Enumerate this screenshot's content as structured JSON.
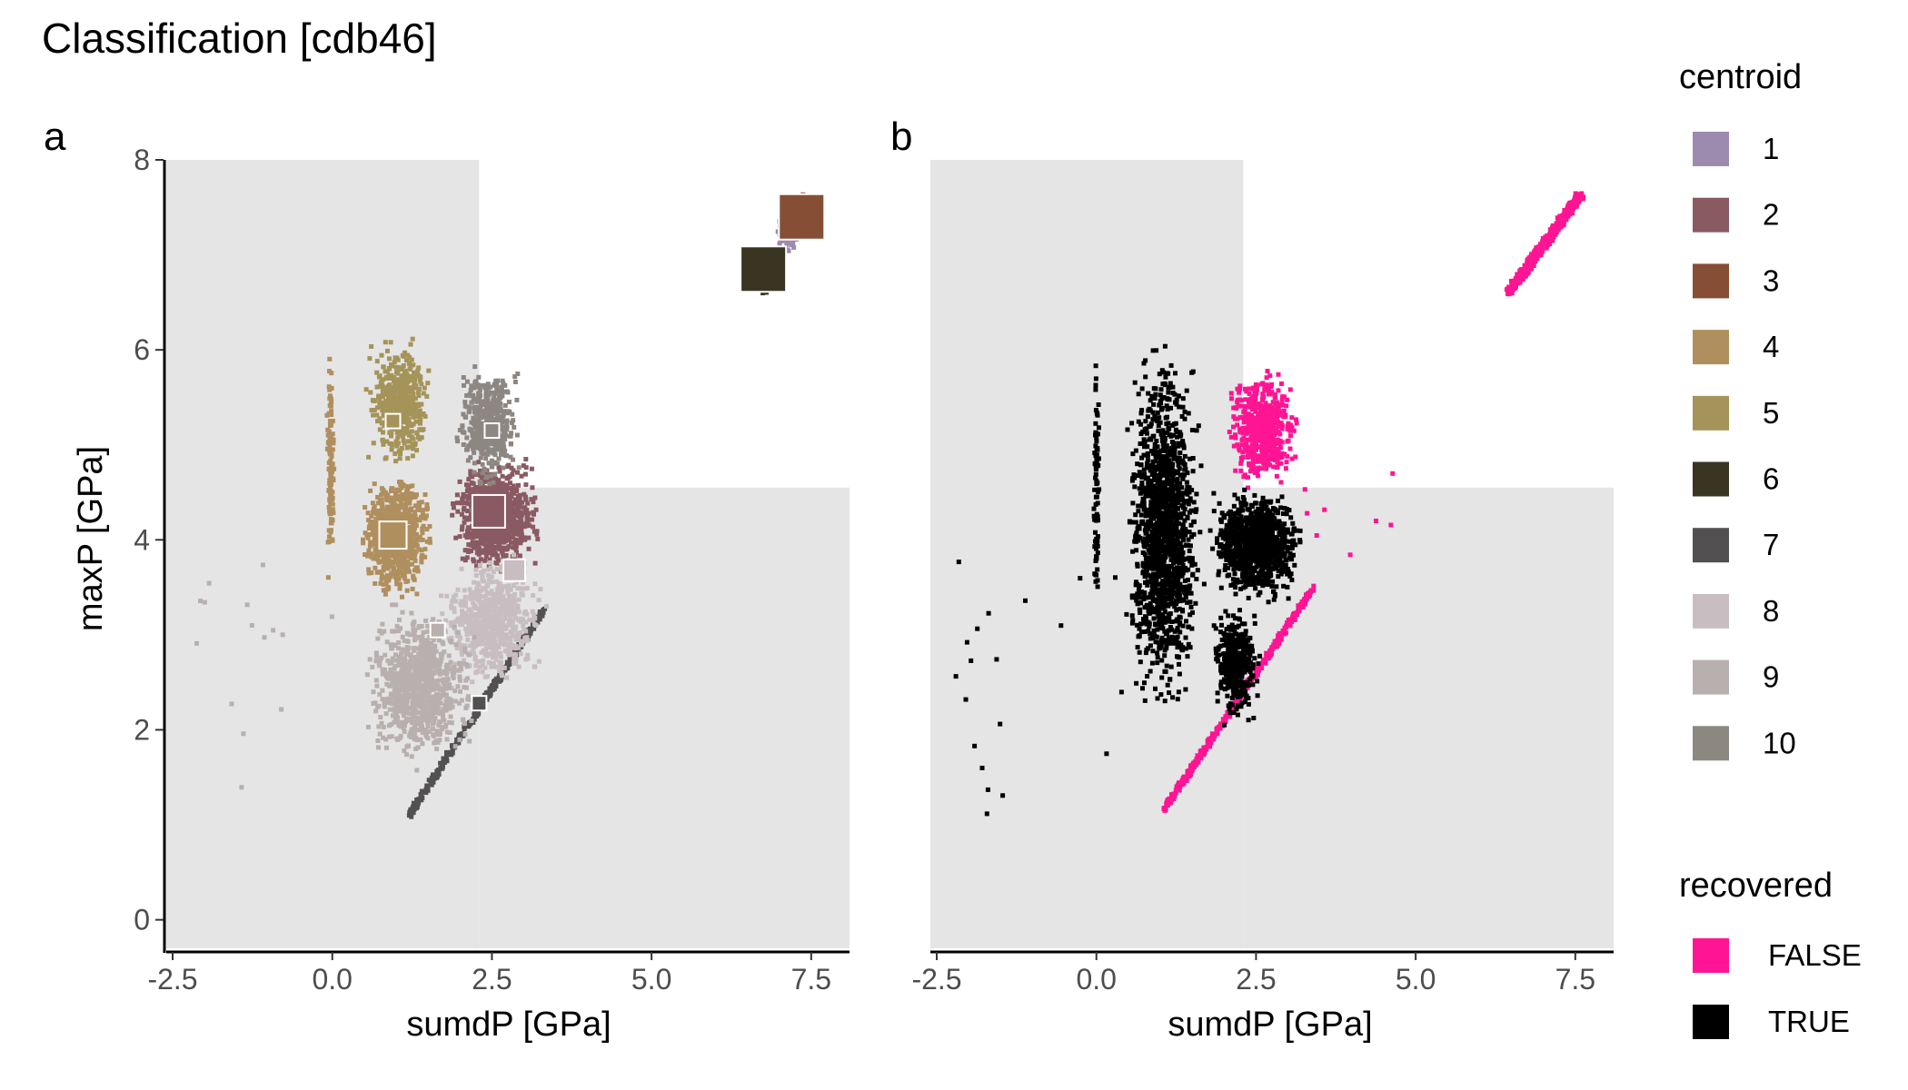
{
  "title": "Classification [cdb46]",
  "colors": {
    "panel_bg": "#E5E5E5",
    "false": "#FF1493",
    "true": "#000000",
    "centroids": {
      "1": "#9D8AAF",
      "2": "#8A5A62",
      "3": "#864E35",
      "4": "#B08F5E",
      "5": "#A59459",
      "6": "#3A3423",
      "7": "#525051",
      "8": "#C8BEC2",
      "9": "#B8B0AE",
      "10": "#8D8782"
    }
  },
  "legends": {
    "centroid": {
      "title": "centroid",
      "items": [
        {
          "label": "1",
          "color": "#9D8AAF"
        },
        {
          "label": "2",
          "color": "#8A5A62"
        },
        {
          "label": "3",
          "color": "#864E35"
        },
        {
          "label": "4",
          "color": "#B08F5E"
        },
        {
          "label": "5",
          "color": "#A59459"
        },
        {
          "label": "6",
          "color": "#3A3423"
        },
        {
          "label": "7",
          "color": "#525051"
        },
        {
          "label": "8",
          "color": "#C8BEC2"
        },
        {
          "label": "9",
          "color": "#B8B0AE"
        },
        {
          "label": "10",
          "color": "#8D8782"
        }
      ]
    },
    "recovered": {
      "title": "recovered",
      "items": [
        {
          "label": "FALSE",
          "color": "#FF1493"
        },
        {
          "label": "TRUE",
          "color": "#000000"
        }
      ]
    }
  },
  "chart_data": [
    {
      "panel": "a",
      "type": "scatter",
      "xlabel": "sumdP [GPa]",
      "ylabel": "maxP [GPa]",
      "xlim": [
        -2.6,
        8.1
      ],
      "ylim": [
        -0.3,
        8.0
      ],
      "xticks": [
        -2.5,
        0.0,
        2.5,
        5.0,
        7.5
      ],
      "xtick_labels": [
        "-2.5",
        "0.0",
        "2.5",
        "5.0",
        "7.5"
      ],
      "yticks": [
        0,
        2,
        4,
        6,
        8
      ],
      "ytick_labels": [
        "0",
        "2",
        "4",
        "6",
        "8"
      ],
      "background_region": {
        "x_split": 2.3,
        "y_split": 4.55
      },
      "grid": false,
      "clusters": [
        {
          "centroid": "1",
          "shape": "box",
          "x": [
            6.9,
            7.3
          ],
          "y": [
            6.9,
            7.5
          ],
          "n": 60
        },
        {
          "centroid": "2",
          "shape": "box",
          "x": [
            1.8,
            3.3
          ],
          "y": [
            3.6,
            4.9
          ],
          "n": 1000
        },
        {
          "centroid": "3",
          "shape": "box",
          "x": [
            7.1,
            7.8
          ],
          "y": [
            7.2,
            7.7
          ],
          "n": 60
        },
        {
          "centroid": "4",
          "shape": "box",
          "x": [
            0.4,
            1.6
          ],
          "y": [
            3.3,
            4.8
          ],
          "n": 800
        },
        {
          "centroid": "4",
          "shape": "box",
          "x": [
            -0.1,
            0.05
          ],
          "y": [
            3.4,
            6.2
          ],
          "n": 110
        },
        {
          "centroid": "5",
          "shape": "box",
          "x": [
            0.5,
            1.6
          ],
          "y": [
            4.7,
            6.2
          ],
          "n": 500
        },
        {
          "centroid": "6",
          "shape": "box",
          "x": [
            6.4,
            7.0
          ],
          "y": [
            6.55,
            7.0
          ],
          "n": 50
        },
        {
          "centroid": "7",
          "shape": "band",
          "x": [
            1.2,
            3.3
          ],
          "y": [
            1.1,
            3.25
          ],
          "width": 0.06,
          "n": 320
        },
        {
          "centroid": "8",
          "shape": "box",
          "x": [
            1.6,
            3.4
          ],
          "y": [
            2.4,
            3.9
          ],
          "n": 700
        },
        {
          "centroid": "9",
          "shape": "box",
          "x": [
            0.4,
            2.3
          ],
          "y": [
            1.5,
            3.4
          ],
          "n": 900
        },
        {
          "centroid": "9",
          "shape": "scatter",
          "x": [
            -2.3,
            0.0
          ],
          "y": [
            1.3,
            3.8
          ],
          "n": 15
        },
        {
          "centroid": "10",
          "shape": "box",
          "x": [
            1.9,
            3.0
          ],
          "y": [
            4.5,
            5.9
          ],
          "n": 500
        }
      ],
      "centroid_markers": [
        {
          "centroid": "1",
          "x": 7.0,
          "y": 7.0,
          "size": 3
        },
        {
          "centroid": "2",
          "x": 2.45,
          "y": 4.3,
          "size": 36
        },
        {
          "centroid": "3",
          "x": 7.35,
          "y": 7.4,
          "size": 50
        },
        {
          "centroid": "4",
          "x": 0.95,
          "y": 4.05,
          "size": 30
        },
        {
          "centroid": "5",
          "x": 0.95,
          "y": 5.25,
          "size": 16
        },
        {
          "centroid": "6",
          "x": 6.75,
          "y": 6.85,
          "size": 50
        },
        {
          "centroid": "7",
          "x": 2.3,
          "y": 2.28,
          "size": 16
        },
        {
          "centroid": "8",
          "x": 2.85,
          "y": 3.68,
          "size": 24
        },
        {
          "centroid": "9",
          "x": 1.65,
          "y": 3.05,
          "size": 16
        },
        {
          "centroid": "10",
          "x": 2.5,
          "y": 5.15,
          "size": 16
        }
      ]
    },
    {
      "panel": "b",
      "type": "scatter",
      "xlabel": "sumdP [GPa]",
      "ylabel": "",
      "xlim": [
        -2.6,
        8.1
      ],
      "ylim": [
        -0.3,
        8.0
      ],
      "xticks": [
        -2.5,
        0.0,
        2.5,
        5.0,
        7.5
      ],
      "xtick_labels": [
        "-2.5",
        "0.0",
        "2.5",
        "5.0",
        "7.5"
      ],
      "background_region": {
        "x_split": 2.3,
        "y_split": 4.55
      },
      "grid": false,
      "series": [
        {
          "name": "FALSE",
          "color": "#FF1493",
          "clusters": [
            {
              "shape": "band",
              "x": [
                6.45,
                7.6
              ],
              "y": [
                6.6,
                7.65
              ],
              "width": 0.09,
              "n": 500
            },
            {
              "shape": "band",
              "x": [
                1.05,
                3.4
              ],
              "y": [
                1.15,
                3.5
              ],
              "width": 0.06,
              "n": 420
            },
            {
              "shape": "box",
              "x": [
                2.0,
                3.2
              ],
              "y": [
                4.5,
                5.85
              ],
              "n": 600
            },
            {
              "shape": "scatter",
              "x": [
                3.2,
                4.7
              ],
              "y": [
                3.7,
                4.7
              ],
              "n": 8
            }
          ]
        },
        {
          "name": "TRUE",
          "color": "#000000",
          "clusters": [
            {
              "shape": "box",
              "x": [
                0.4,
                1.7
              ],
              "y": [
                2.0,
                6.2
              ],
              "n": 1500
            },
            {
              "shape": "box",
              "x": [
                1.7,
                3.3
              ],
              "y": [
                3.3,
                4.6
              ],
              "n": 1000
            },
            {
              "shape": "box",
              "x": [
                1.8,
                2.6
              ],
              "y": [
                2.0,
                3.4
              ],
              "n": 400
            },
            {
              "shape": "box",
              "x": [
                -0.05,
                0.05
              ],
              "y": [
                2.8,
                6.2
              ],
              "n": 80
            },
            {
              "shape": "scatter",
              "x": [
                -2.2,
                0.4
              ],
              "y": [
                1.1,
                3.8
              ],
              "n": 20
            }
          ]
        }
      ]
    }
  ],
  "panels": {
    "a": {
      "tag": "a"
    },
    "b": {
      "tag": "b"
    }
  }
}
